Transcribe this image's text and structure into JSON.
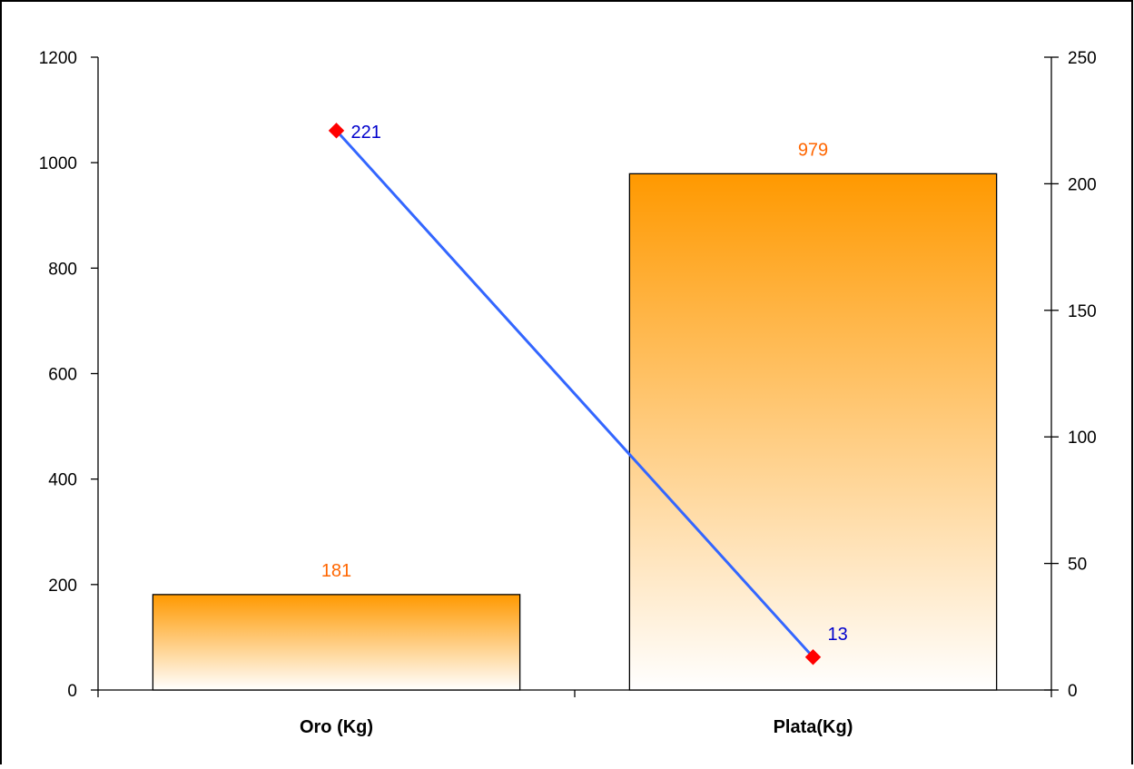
{
  "chart_data": {
    "type": "bar",
    "categories": [
      "Oro (Kg)",
      "Plata(Kg)"
    ],
    "series": [
      {
        "type": "bar",
        "axis": "left",
        "values": [
          181,
          979
        ],
        "color": "#FF9900",
        "label_color": "#FF6600"
      },
      {
        "type": "line",
        "axis": "right",
        "values": [
          221,
          13
        ],
        "color": "#3366FF",
        "marker_color": "#FF0000",
        "label_color": "#0000CC"
      }
    ],
    "y_left": {
      "ticks": [
        0,
        200,
        400,
        600,
        800,
        1000,
        1200
      ],
      "ylim": [
        0,
        1200
      ]
    },
    "y_right": {
      "ticks": [
        0,
        50,
        100,
        150,
        200,
        250
      ],
      "ylim": [
        0,
        250
      ]
    },
    "grid": false,
    "legend": "none"
  }
}
